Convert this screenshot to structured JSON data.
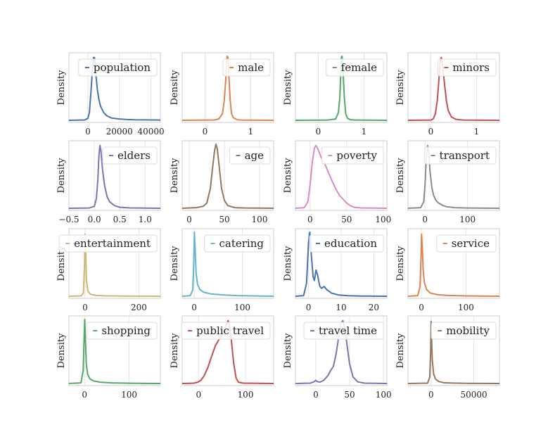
{
  "chart_data": [
    {
      "type": "line",
      "legend": "population",
      "color": "#4c72b0",
      "ylabel": "Density",
      "xlim": [
        -12000,
        46000
      ],
      "xticks": [
        0,
        20000,
        40000
      ],
      "xtick_labels": [
        "0",
        "20000",
        "40000"
      ],
      "legend_pos": "top-right",
      "kde": [
        [
          -12000,
          0
        ],
        [
          -2000,
          0.005
        ],
        [
          0,
          0.03
        ],
        [
          1000,
          0.12
        ],
        [
          2000,
          0.45
        ],
        [
          3000,
          0.8
        ],
        [
          3600,
          0.96
        ],
        [
          4200,
          0.96
        ],
        [
          5000,
          0.72
        ],
        [
          6000,
          0.48
        ],
        [
          7000,
          0.32
        ],
        [
          8000,
          0.22
        ],
        [
          10000,
          0.12
        ],
        [
          12000,
          0.07
        ],
        [
          15000,
          0.035
        ],
        [
          20000,
          0.02
        ],
        [
          25000,
          0.012
        ],
        [
          30000,
          0.008
        ],
        [
          38000,
          0.006
        ],
        [
          46000,
          0.004
        ]
      ]
    },
    {
      "type": "line",
      "legend": "male",
      "color": "#dd8452",
      "ylabel": "Density",
      "xlim": [
        -0.5,
        1.5
      ],
      "xticks": [
        0,
        1
      ],
      "xtick_labels": [
        "0",
        "1"
      ],
      "legend_pos": "top-right",
      "kde": [
        [
          -0.5,
          0
        ],
        [
          0.2,
          0.005
        ],
        [
          0.3,
          0.02
        ],
        [
          0.38,
          0.1
        ],
        [
          0.42,
          0.3
        ],
        [
          0.45,
          0.6
        ],
        [
          0.47,
          0.88
        ],
        [
          0.485,
          0.98
        ],
        [
          0.5,
          0.96
        ],
        [
          0.52,
          0.7
        ],
        [
          0.55,
          0.3
        ],
        [
          0.58,
          0.1
        ],
        [
          0.62,
          0.04
        ],
        [
          0.7,
          0.01
        ],
        [
          0.8,
          0.004
        ],
        [
          1.5,
          0
        ]
      ]
    },
    {
      "type": "line",
      "legend": "female",
      "color": "#55a868",
      "ylabel": "Density",
      "xlim": [
        -0.5,
        1.5
      ],
      "xticks": [
        0,
        1
      ],
      "xtick_labels": [
        "0",
        "1"
      ],
      "legend_pos": "top-right",
      "kde": [
        [
          -0.5,
          0
        ],
        [
          0.2,
          0.004
        ],
        [
          0.38,
          0.02
        ],
        [
          0.44,
          0.12
        ],
        [
          0.47,
          0.35
        ],
        [
          0.49,
          0.7
        ],
        [
          0.505,
          0.96
        ],
        [
          0.52,
          0.98
        ],
        [
          0.54,
          0.75
        ],
        [
          0.57,
          0.35
        ],
        [
          0.6,
          0.1
        ],
        [
          0.64,
          0.03
        ],
        [
          0.7,
          0.01
        ],
        [
          0.8,
          0.004
        ],
        [
          1.5,
          0
        ]
      ]
    },
    {
      "type": "line",
      "legend": "minors",
      "color": "#c44e52",
      "ylabel": "Density",
      "xlim": [
        -0.5,
        1.5
      ],
      "xticks": [
        0,
        1
      ],
      "xtick_labels": [
        "0",
        "1"
      ],
      "legend_pos": "top-right",
      "kde": [
        [
          -0.5,
          0
        ],
        [
          0,
          0.004
        ],
        [
          0.05,
          0.02
        ],
        [
          0.1,
          0.1
        ],
        [
          0.14,
          0.3
        ],
        [
          0.17,
          0.55
        ],
        [
          0.19,
          0.78
        ],
        [
          0.21,
          0.93
        ],
        [
          0.23,
          0.96
        ],
        [
          0.26,
          0.82
        ],
        [
          0.3,
          0.55
        ],
        [
          0.34,
          0.3
        ],
        [
          0.38,
          0.15
        ],
        [
          0.45,
          0.05
        ],
        [
          0.55,
          0.015
        ],
        [
          0.7,
          0.004
        ],
        [
          1.5,
          0
        ]
      ]
    },
    {
      "type": "line",
      "legend": "elders",
      "color": "#8172b3",
      "ylabel": "Density",
      "xlim": [
        -0.5,
        1.3
      ],
      "xticks": [
        -0.5,
        0,
        0.5,
        1
      ],
      "xtick_labels": [
        "−0.5",
        "0.0",
        "0.5",
        "1.0"
      ],
      "legend_pos": "top-right",
      "kde": [
        [
          -0.5,
          0
        ],
        [
          -0.1,
          0.004
        ],
        [
          0,
          0.03
        ],
        [
          0.04,
          0.15
        ],
        [
          0.07,
          0.45
        ],
        [
          0.09,
          0.8
        ],
        [
          0.11,
          0.96
        ],
        [
          0.13,
          0.88
        ],
        [
          0.16,
          0.6
        ],
        [
          0.2,
          0.35
        ],
        [
          0.25,
          0.18
        ],
        [
          0.3,
          0.1
        ],
        [
          0.4,
          0.04
        ],
        [
          0.5,
          0.015
        ],
        [
          0.7,
          0.005
        ],
        [
          1.3,
          0
        ]
      ]
    },
    {
      "type": "line",
      "legend": "age",
      "color": "#937860",
      "ylabel": "Density",
      "xlim": [
        -10,
        120
      ],
      "xticks": [
        0,
        50,
        100
      ],
      "xtick_labels": [
        "0",
        "50",
        "100"
      ],
      "legend_pos": "top-right",
      "kde": [
        [
          -10,
          0
        ],
        [
          10,
          0.01
        ],
        [
          20,
          0.03
        ],
        [
          25,
          0.08
        ],
        [
          30,
          0.3
        ],
        [
          33,
          0.6
        ],
        [
          36,
          0.88
        ],
        [
          38,
          0.98
        ],
        [
          40,
          0.9
        ],
        [
          43,
          0.6
        ],
        [
          46,
          0.3
        ],
        [
          50,
          0.12
        ],
        [
          55,
          0.04
        ],
        [
          65,
          0.01
        ],
        [
          80,
          0.004
        ],
        [
          120,
          0
        ]
      ]
    },
    {
      "type": "line",
      "legend": "poverty",
      "color": "#da8bc3",
      "ylabel": "Density",
      "xlim": [
        -20,
        105
      ],
      "xticks": [
        0,
        50,
        100
      ],
      "xtick_labels": [
        "0",
        "50",
        "100"
      ],
      "legend_pos": "top-right",
      "kde": [
        [
          -20,
          0
        ],
        [
          -8,
          0.01
        ],
        [
          -3,
          0.1
        ],
        [
          0,
          0.35
        ],
        [
          3,
          0.7
        ],
        [
          6,
          0.92
        ],
        [
          8,
          0.96
        ],
        [
          11,
          0.9
        ],
        [
          15,
          0.78
        ],
        [
          20,
          0.68
        ],
        [
          25,
          0.55
        ],
        [
          30,
          0.42
        ],
        [
          35,
          0.3
        ],
        [
          40,
          0.2
        ],
        [
          45,
          0.14
        ],
        [
          50,
          0.08
        ],
        [
          55,
          0.04
        ],
        [
          60,
          0.015
        ],
        [
          70,
          0.005
        ],
        [
          105,
          0
        ]
      ]
    },
    {
      "type": "line",
      "legend": "transport",
      "color": "#8c8c8c",
      "ylabel": "Density",
      "xlim": [
        -40,
        175
      ],
      "xticks": [
        0,
        100
      ],
      "xtick_labels": [
        "0",
        "100"
      ],
      "legend_pos": "top-right",
      "kde": [
        [
          -40,
          0
        ],
        [
          -10,
          0.01
        ],
        [
          -3,
          0.1
        ],
        [
          0,
          0.35
        ],
        [
          3,
          0.75
        ],
        [
          6,
          0.96
        ],
        [
          9,
          0.85
        ],
        [
          12,
          0.55
        ],
        [
          16,
          0.32
        ],
        [
          20,
          0.2
        ],
        [
          25,
          0.13
        ],
        [
          30,
          0.09
        ],
        [
          40,
          0.05
        ],
        [
          50,
          0.025
        ],
        [
          70,
          0.01
        ],
        [
          100,
          0.004
        ],
        [
          175,
          0
        ]
      ]
    },
    {
      "type": "line",
      "legend": "entertainment",
      "color": "#ccb974",
      "ylabel": "Density",
      "xlim": [
        -60,
        280
      ],
      "xticks": [
        0,
        200
      ],
      "xtick_labels": [
        "0",
        "200"
      ],
      "legend_pos": "top-right",
      "kde": [
        [
          -60,
          0
        ],
        [
          -15,
          0.005
        ],
        [
          -6,
          0.05
        ],
        [
          -2,
          0.5
        ],
        [
          0,
          0.95
        ],
        [
          2,
          0.7
        ],
        [
          5,
          0.25
        ],
        [
          10,
          0.08
        ],
        [
          20,
          0.03
        ],
        [
          40,
          0.012
        ],
        [
          80,
          0.005
        ],
        [
          150,
          0.002
        ],
        [
          280,
          0
        ]
      ]
    },
    {
      "type": "line",
      "legend": "catering",
      "color": "#64b5cd",
      "ylabel": "Density",
      "xlim": [
        -25,
        165
      ],
      "xticks": [
        0,
        100
      ],
      "xtick_labels": [
        "0",
        "100"
      ],
      "legend_pos": "top-right",
      "kde": [
        [
          -25,
          0
        ],
        [
          -8,
          0.01
        ],
        [
          -3,
          0.1
        ],
        [
          -1,
          0.5
        ],
        [
          0.5,
          0.98
        ],
        [
          2,
          0.7
        ],
        [
          4,
          0.35
        ],
        [
          7,
          0.18
        ],
        [
          12,
          0.1
        ],
        [
          20,
          0.06
        ],
        [
          35,
          0.035
        ],
        [
          60,
          0.02
        ],
        [
          90,
          0.01
        ],
        [
          130,
          0.004
        ],
        [
          165,
          0
        ]
      ]
    },
    {
      "type": "line",
      "legend": "education",
      "color": "#4c72b0",
      "ylabel": "Density",
      "xlim": [
        -4,
        24
      ],
      "xticks": [
        0,
        10,
        20
      ],
      "xtick_labels": [
        "0",
        "10",
        "20"
      ],
      "legend_pos": "top-right",
      "kde": [
        [
          -4,
          0
        ],
        [
          -1.5,
          0.01
        ],
        [
          -0.6,
          0.2
        ],
        [
          0,
          0.82
        ],
        [
          0.4,
          0.98
        ],
        [
          0.9,
          0.6
        ],
        [
          1.4,
          0.3
        ],
        [
          1.8,
          0.24
        ],
        [
          2.3,
          0.4
        ],
        [
          2.8,
          0.32
        ],
        [
          3.4,
          0.16
        ],
        [
          4,
          0.12
        ],
        [
          4.8,
          0.15
        ],
        [
          5.6,
          0.1
        ],
        [
          7,
          0.05
        ],
        [
          9,
          0.02
        ],
        [
          12,
          0.008
        ],
        [
          16,
          0.003
        ],
        [
          24,
          0
        ]
      ]
    },
    {
      "type": "line",
      "legend": "service",
      "color": "#dd8452",
      "ylabel": "Density",
      "xlim": [
        -30,
        175
      ],
      "xticks": [
        0,
        100
      ],
      "xtick_labels": [
        "0",
        "100"
      ],
      "legend_pos": "top-right",
      "kde": [
        [
          -30,
          0
        ],
        [
          -8,
          0.01
        ],
        [
          -3,
          0.15
        ],
        [
          -1,
          0.55
        ],
        [
          0.5,
          0.95
        ],
        [
          2,
          0.75
        ],
        [
          4,
          0.4
        ],
        [
          7,
          0.2
        ],
        [
          12,
          0.1
        ],
        [
          20,
          0.05
        ],
        [
          35,
          0.025
        ],
        [
          60,
          0.012
        ],
        [
          100,
          0.005
        ],
        [
          175,
          0
        ]
      ]
    },
    {
      "type": "line",
      "legend": "shopping",
      "color": "#55a868",
      "ylabel": "Density",
      "xlim": [
        -35,
        170
      ],
      "xticks": [
        0,
        100
      ],
      "xtick_labels": [
        "0",
        "100"
      ],
      "legend_pos": "top-right",
      "kde": [
        [
          -35,
          0
        ],
        [
          -8,
          0.01
        ],
        [
          -3,
          0.2
        ],
        [
          -1,
          0.7
        ],
        [
          0.3,
          0.98
        ],
        [
          2,
          0.65
        ],
        [
          4,
          0.3
        ],
        [
          7,
          0.14
        ],
        [
          12,
          0.07
        ],
        [
          20,
          0.04
        ],
        [
          35,
          0.02
        ],
        [
          60,
          0.01
        ],
        [
          100,
          0.004
        ],
        [
          170,
          0
        ]
      ]
    },
    {
      "type": "line",
      "legend": "public travel",
      "color": "#c44e52",
      "ylabel": "Density",
      "xlim": [
        -35,
        160
      ],
      "xticks": [
        0,
        100
      ],
      "xtick_labels": [
        "0",
        "100"
      ],
      "legend_pos": "top-right",
      "kde": [
        [
          -35,
          0
        ],
        [
          -10,
          0.005
        ],
        [
          -2,
          0.02
        ],
        [
          5,
          0.05
        ],
        [
          12,
          0.12
        ],
        [
          20,
          0.25
        ],
        [
          28,
          0.42
        ],
        [
          36,
          0.58
        ],
        [
          44,
          0.68
        ],
        [
          50,
          0.74
        ],
        [
          55,
          0.82
        ],
        [
          60,
          0.92
        ],
        [
          63,
          0.96
        ],
        [
          66,
          0.9
        ],
        [
          70,
          0.65
        ],
        [
          75,
          0.3
        ],
        [
          80,
          0.08
        ],
        [
          85,
          0.02
        ],
        [
          95,
          0.005
        ],
        [
          160,
          0
        ]
      ]
    },
    {
      "type": "line",
      "legend": "travel time",
      "color": "#8172b3",
      "ylabel": "Density",
      "xlim": [
        -30,
        105
      ],
      "xticks": [
        0,
        50,
        100
      ],
      "xtick_labels": [
        "0",
        "50",
        "100"
      ],
      "legend_pos": "top-right",
      "kde": [
        [
          -30,
          0
        ],
        [
          -8,
          0.005
        ],
        [
          -2,
          0.03
        ],
        [
          0,
          0.05
        ],
        [
          2,
          0.03
        ],
        [
          6,
          0.02
        ],
        [
          12,
          0.05
        ],
        [
          18,
          0.12
        ],
        [
          22,
          0.2
        ],
        [
          26,
          0.26
        ],
        [
          30,
          0.45
        ],
        [
          34,
          0.72
        ],
        [
          37,
          0.92
        ],
        [
          40,
          0.96
        ],
        [
          43,
          0.85
        ],
        [
          46,
          0.6
        ],
        [
          50,
          0.3
        ],
        [
          55,
          0.1
        ],
        [
          62,
          0.025
        ],
        [
          72,
          0.005
        ],
        [
          105,
          0
        ]
      ]
    },
    {
      "type": "line",
      "legend": "mobility",
      "color": "#937860",
      "ylabel": "Density",
      "xlim": [
        -27000,
        80000
      ],
      "xticks": [
        0,
        50000
      ],
      "xtick_labels": [
        "0",
        "50000"
      ],
      "legend_pos": "top-right",
      "kde": [
        [
          -27000,
          0
        ],
        [
          -4000,
          0.005
        ],
        [
          -1500,
          0.1
        ],
        [
          -500,
          0.5
        ],
        [
          0,
          0.95
        ],
        [
          500,
          0.7
        ],
        [
          1500,
          0.35
        ],
        [
          3000,
          0.15
        ],
        [
          5000,
          0.07
        ],
        [
          9000,
          0.03
        ],
        [
          15000,
          0.012
        ],
        [
          25000,
          0.006
        ],
        [
          40000,
          0.003
        ],
        [
          80000,
          0
        ]
      ]
    }
  ]
}
